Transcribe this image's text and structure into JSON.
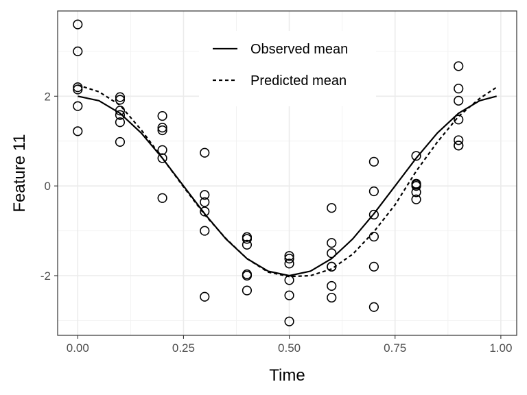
{
  "chart_data": {
    "type": "scatter",
    "title": "",
    "xlabel": "Time",
    "ylabel": "Feature 11",
    "xlim": [
      -0.0475,
      1.0375
    ],
    "ylim": [
      -3.33,
      3.9
    ],
    "x_ticks": [
      0,
      0.25,
      0.5,
      0.75,
      1
    ],
    "x_tick_labels": [
      "0.00",
      "0.25",
      "0.50",
      "0.75",
      "1.00"
    ],
    "x_minor_ticks": [
      0.125,
      0.375,
      0.625,
      0.875
    ],
    "y_ticks": [
      -2,
      0,
      2
    ],
    "y_tick_labels": [
      "-2",
      "0",
      "2"
    ],
    "y_minor_ticks": [
      -3,
      -1,
      1,
      3
    ],
    "grid": true,
    "legend_position": "top-center",
    "series": [
      {
        "name": "Observed mean",
        "kind": "line",
        "style": "solid",
        "color": "#000000",
        "x": [
          0,
          0.05,
          0.1,
          0.15,
          0.2,
          0.25,
          0.3,
          0.35,
          0.4,
          0.45,
          0.5,
          0.55,
          0.6,
          0.65,
          0.7,
          0.75,
          0.8,
          0.85,
          0.9,
          0.95,
          0.99
        ],
        "y": [
          2.0,
          1.9,
          1.62,
          1.18,
          0.62,
          0.0,
          -0.62,
          -1.18,
          -1.62,
          -1.9,
          -2.0,
          -1.9,
          -1.62,
          -1.18,
          -0.62,
          0.0,
          0.62,
          1.18,
          1.62,
          1.9,
          2.0
        ]
      },
      {
        "name": "Predicted mean",
        "kind": "line",
        "style": "dashed",
        "color": "#000000",
        "x": [
          0,
          0.05,
          0.1,
          0.15,
          0.2,
          0.25,
          0.3,
          0.35,
          0.4,
          0.45,
          0.5,
          0.55,
          0.6,
          0.65,
          0.7,
          0.75,
          0.8,
          0.85,
          0.9,
          0.95,
          0.99
        ],
        "y": [
          2.25,
          2.1,
          1.8,
          1.25,
          0.62,
          -0.02,
          -0.64,
          -1.17,
          -1.62,
          -1.92,
          -2.02,
          -2.0,
          -1.85,
          -1.52,
          -1.02,
          -0.42,
          0.33,
          0.98,
          1.55,
          1.95,
          2.2
        ]
      },
      {
        "name": "",
        "kind": "points",
        "marker": "open-circle",
        "color": "#000000",
        "x": [
          0,
          0,
          0,
          0,
          0,
          0,
          0.1,
          0.1,
          0.1,
          0.1,
          0.1,
          0.1,
          0.2,
          0.2,
          0.2,
          0.2,
          0.2,
          0.2,
          0.3,
          0.3,
          0.3,
          0.3,
          0.3,
          0.3,
          0.4,
          0.4,
          0.4,
          0.4,
          0.4,
          0.4,
          0.5,
          0.5,
          0.5,
          0.5,
          0.5,
          0.5,
          0.6,
          0.6,
          0.6,
          0.6,
          0.6,
          0.6,
          0.6,
          0.7,
          0.7,
          0.7,
          0.7,
          0.7,
          0.7,
          0.8,
          0.8,
          0.8,
          0.8,
          0.8,
          0.8,
          0.9,
          0.9,
          0.9,
          0.9,
          0.9,
          0.9,
          0.9
        ],
        "y": [
          3.6,
          3.0,
          2.2,
          2.15,
          1.78,
          1.22,
          1.98,
          1.92,
          1.68,
          1.58,
          1.42,
          0.98,
          1.56,
          1.3,
          1.24,
          0.8,
          0.62,
          -0.27,
          0.74,
          -0.2,
          -0.36,
          -0.57,
          -1.0,
          -2.47,
          -1.14,
          -1.18,
          -1.31,
          -1.97,
          -2.0,
          -2.33,
          -1.56,
          -1.62,
          -1.73,
          -2.1,
          -2.44,
          -3.02,
          -0.49,
          -1.27,
          -1.5,
          -1.8,
          -2.23,
          -2.49,
          -1.8,
          0.54,
          -0.12,
          -0.64,
          -1.13,
          -1.8,
          -2.7,
          0.67,
          0.05,
          0.0,
          -0.14,
          -0.3,
          0.03,
          2.67,
          2.17,
          1.9,
          1.48,
          1.02,
          0.9,
          0.9
        ]
      }
    ]
  }
}
